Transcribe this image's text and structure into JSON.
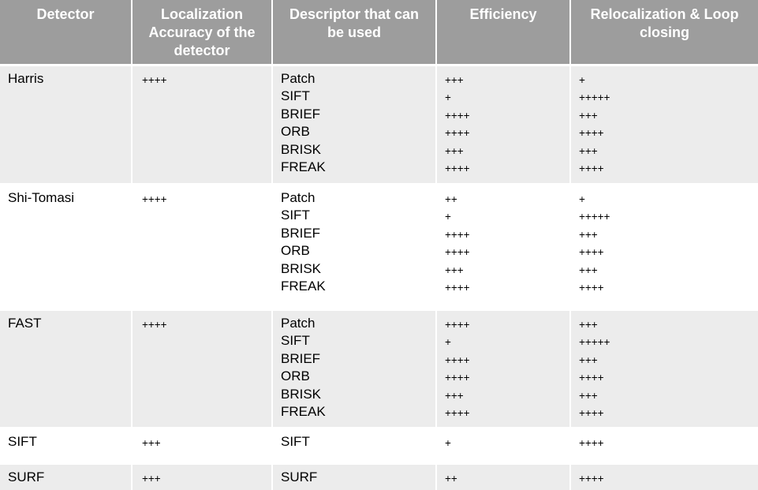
{
  "headers": [
    "Detector",
    "Localization Accuracy of the detector",
    "Descriptor that can be used",
    "Efficiency",
    "Relocalization & Loop closing"
  ],
  "rows": [
    {
      "detector": "Harris",
      "accuracy": "++++",
      "descriptors": [
        "Patch",
        "SIFT",
        "BRIEF",
        "ORB",
        "BRISK",
        "FREAK"
      ],
      "efficiency": [
        "+++",
        "+",
        "++++",
        "++++",
        "+++",
        "++++"
      ],
      "relocalization": [
        "+",
        "+++++",
        "+++",
        "++++",
        "+++",
        "++++"
      ]
    },
    {
      "detector": "Shi-Tomasi",
      "accuracy": "++++",
      "descriptors": [
        "Patch",
        "SIFT",
        "BRIEF",
        "ORB",
        "BRISK",
        "FREAK"
      ],
      "efficiency": [
        "++",
        "+",
        "++++",
        "++++",
        "+++",
        "++++"
      ],
      "relocalization": [
        "+",
        "+++++",
        "+++",
        "++++",
        "+++",
        "++++"
      ]
    },
    {
      "detector": "FAST",
      "accuracy": "++++",
      "descriptors": [
        "Patch",
        "SIFT",
        "BRIEF",
        "ORB",
        "BRISK",
        "FREAK"
      ],
      "efficiency": [
        "++++",
        "+",
        "++++",
        "++++",
        "+++",
        "++++"
      ],
      "relocalization": [
        "+++",
        "+++++",
        "+++",
        "++++",
        "+++",
        "++++"
      ]
    },
    {
      "detector": "SIFT",
      "accuracy": "+++",
      "descriptors": [
        "SIFT"
      ],
      "efficiency": [
        "+"
      ],
      "relocalization": [
        "++++"
      ]
    },
    {
      "detector": "SURF",
      "accuracy": "+++",
      "descriptors": [
        "SURF"
      ],
      "efficiency": [
        "++"
      ],
      "relocalization": [
        "++++"
      ]
    }
  ]
}
